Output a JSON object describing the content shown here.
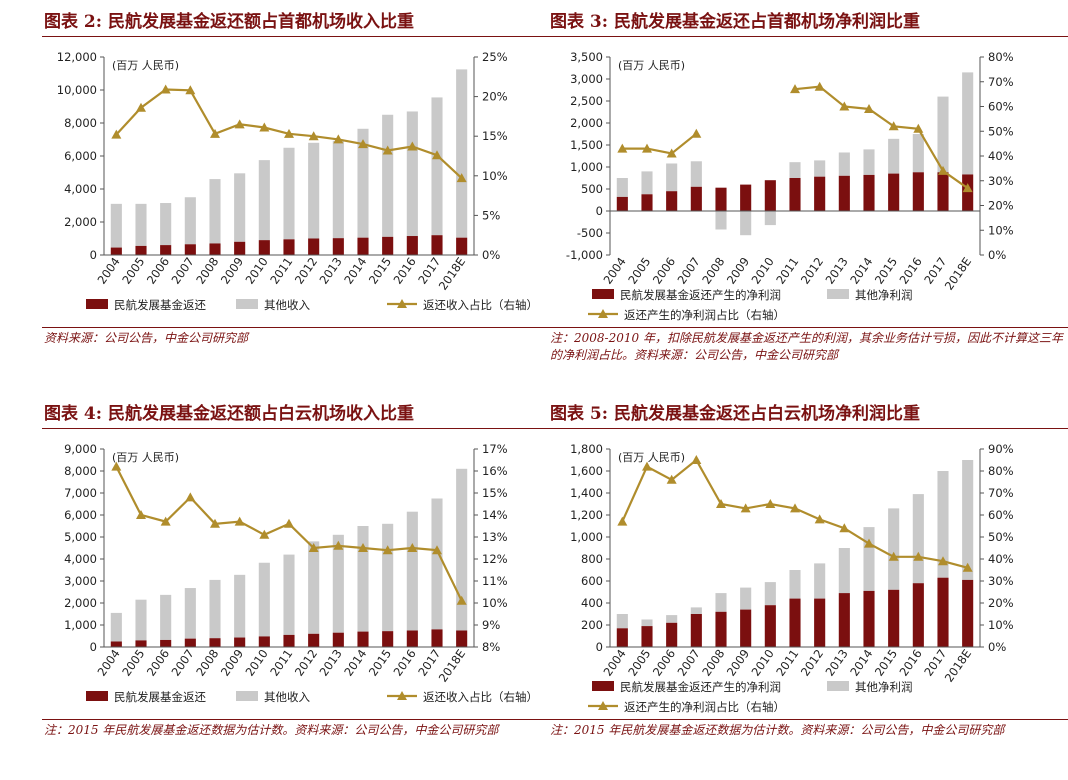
{
  "colors": {
    "bar": "#7b0f0f",
    "other": "#c9c9c9",
    "line": "#b08d2c",
    "accent": "#7a1212"
  },
  "unit_label": "(百万 人民币)",
  "chart_data": [
    {
      "type": "bar",
      "title": "图表 2: 民航发展基金返还额占首都机场收入比重",
      "note": "资料来源：公司公告，中金公司研究部",
      "categories": [
        "2004",
        "2005",
        "2006",
        "2007",
        "2008",
        "2009",
        "2010",
        "2011",
        "2012",
        "2013",
        "2014",
        "2015",
        "2016",
        "2017",
        "2018E"
      ],
      "series": [
        {
          "name": "民航发展基金返还",
          "kind": "bar",
          "values": [
            450,
            550,
            600,
            650,
            700,
            800,
            900,
            950,
            1000,
            1020,
            1050,
            1100,
            1150,
            1200,
            1050
          ]
        },
        {
          "name": "其他收入",
          "kind": "stack",
          "values": [
            2650,
            2550,
            2550,
            2850,
            3900,
            4150,
            4850,
            5550,
            5800,
            5900,
            6600,
            7400,
            7550,
            8350,
            10200
          ]
        },
        {
          "name": "返还收入占比（右轴）",
          "kind": "line",
          "values": [
            15.2,
            18.6,
            20.9,
            20.8,
            15.3,
            16.5,
            16.1,
            15.3,
            15.0,
            14.6,
            14.0,
            13.2,
            13.7,
            12.6,
            9.7
          ]
        }
      ],
      "y_left": {
        "min": 0,
        "max": 12000,
        "ticks": [
          "0",
          "2,000",
          "4,000",
          "6,000",
          "8,000",
          "10,000",
          "12,000"
        ]
      },
      "y_right": {
        "min": 0,
        "max": 25,
        "ticks": [
          "0%",
          "5%",
          "10%",
          "15%",
          "20%",
          "25%"
        ]
      },
      "legend_rows": [
        [
          "民航发展基金返还",
          "其他收入",
          "返还收入占比（右轴）"
        ]
      ],
      "legend_placement": "bottom"
    },
    {
      "type": "bar",
      "title": "图表 3: 民航发展基金返还占首都机场净利润比重",
      "note": "注：2008-2010 年，扣除民航发展基金返还产生的利润，其余业务估计亏损，因此不计算这三年的净利润占比。资料来源：公司公告，中金公司研究部",
      "categories": [
        "2004",
        "2005",
        "2006",
        "2007",
        "2008",
        "2009",
        "2010",
        "2011",
        "2012",
        "2013",
        "2014",
        "2015",
        "2016",
        "2017",
        "2018E"
      ],
      "series": [
        {
          "name": "民航发展基金返还产生的净利润",
          "kind": "bar",
          "values": [
            320,
            380,
            450,
            550,
            530,
            600,
            700,
            750,
            780,
            800,
            820,
            850,
            880,
            880,
            830
          ]
        },
        {
          "name": "其他净利润",
          "kind": "stack",
          "values": [
            430,
            520,
            630,
            580,
            -420,
            -550,
            -320,
            360,
            370,
            530,
            580,
            790,
            870,
            1720,
            2320
          ]
        },
        {
          "name": "返还产生的净利润占比（右轴）",
          "kind": "line",
          "values": [
            43,
            43,
            41,
            49,
            null,
            null,
            null,
            67,
            68,
            60,
            59,
            52,
            51,
            34,
            27
          ]
        }
      ],
      "y_left": {
        "min": -1000,
        "max": 3500,
        "ticks": [
          "-1,000",
          "-500",
          "0",
          "500",
          "1,000",
          "1,500",
          "2,000",
          "2,500",
          "3,000",
          "3,500"
        ]
      },
      "y_right": {
        "min": 0,
        "max": 80,
        "ticks": [
          "0%",
          "10%",
          "20%",
          "30%",
          "40%",
          "50%",
          "60%",
          "70%",
          "80%"
        ]
      },
      "legend_rows": [
        [
          "民航发展基金返还产生的净利润",
          "其他净利润"
        ],
        [
          "返还产生的净利润占比（右轴）"
        ]
      ],
      "legend_placement": "bottom"
    },
    {
      "type": "bar",
      "title": "图表 4: 民航发展基金返还额占白云机场收入比重",
      "note": "注：2015 年民航发展基金返还数据为估计数。资料来源：公司公告，中金公司研究部",
      "categories": [
        "2004",
        "2005",
        "2006",
        "2007",
        "2008",
        "2009",
        "2010",
        "2011",
        "2012",
        "2013",
        "2014",
        "2015",
        "2016",
        "2017",
        "2018E"
      ],
      "series": [
        {
          "name": "民航发展基金返还",
          "kind": "bar",
          "values": [
            250,
            300,
            320,
            380,
            400,
            430,
            480,
            550,
            600,
            650,
            700,
            720,
            750,
            800,
            750
          ]
        },
        {
          "name": "其他收入",
          "kind": "stack",
          "values": [
            1300,
            1850,
            2050,
            2300,
            2650,
            2850,
            3350,
            3650,
            4200,
            4450,
            4800,
            4880,
            5400,
            5950,
            7350
          ]
        },
        {
          "name": "返还收入占比（右轴）",
          "kind": "line",
          "values": [
            16.2,
            14.0,
            13.7,
            14.8,
            13.6,
            13.7,
            13.1,
            13.6,
            12.5,
            12.6,
            12.5,
            12.4,
            12.5,
            12.4,
            10.1
          ]
        }
      ],
      "y_left": {
        "min": 0,
        "max": 9000,
        "ticks": [
          "0",
          "1,000",
          "2,000",
          "3,000",
          "4,000",
          "5,000",
          "6,000",
          "7,000",
          "8,000",
          "9,000"
        ]
      },
      "y_right": {
        "min": 8,
        "max": 17,
        "ticks": [
          "8%",
          "9%",
          "10%",
          "11%",
          "12%",
          "13%",
          "14%",
          "15%",
          "16%",
          "17%"
        ]
      },
      "legend_rows": [
        [
          "民航发展基金返还",
          "其他收入",
          "返还收入占比（右轴）"
        ]
      ],
      "legend_placement": "bottom"
    },
    {
      "type": "bar",
      "title": "图表 5: 民航发展基金返还占白云机场净利润比重",
      "note": "注：2015 年民航发展基金返还数据为估计数。资料来源：公司公告，中金公司研究部",
      "categories": [
        "2004",
        "2005",
        "2006",
        "2007",
        "2008",
        "2009",
        "2010",
        "2011",
        "2012",
        "2013",
        "2014",
        "2015",
        "2016",
        "2017",
        "2018E"
      ],
      "series": [
        {
          "name": "民航发展基金返还产生的净利润",
          "kind": "bar",
          "values": [
            170,
            190,
            220,
            300,
            320,
            340,
            380,
            440,
            440,
            490,
            510,
            520,
            580,
            630,
            610
          ]
        },
        {
          "name": "其他净利润",
          "kind": "stack",
          "values": [
            130,
            60,
            70,
            60,
            170,
            200,
            210,
            260,
            320,
            410,
            580,
            740,
            810,
            970,
            1090
          ]
        },
        {
          "name": "返还产生的净利润占比（右轴）",
          "kind": "line",
          "values": [
            57,
            82,
            76,
            85,
            65,
            63,
            65,
            63,
            58,
            54,
            47,
            41,
            41,
            39,
            36
          ]
        }
      ],
      "y_left": {
        "min": 0,
        "max": 1800,
        "ticks": [
          "0",
          "200",
          "400",
          "600",
          "800",
          "1,000",
          "1,200",
          "1,400",
          "1,600",
          "1,800"
        ]
      },
      "y_right": {
        "min": 0,
        "max": 90,
        "ticks": [
          "0%",
          "10%",
          "20%",
          "30%",
          "40%",
          "50%",
          "60%",
          "70%",
          "80%",
          "90%"
        ]
      },
      "legend_rows": [
        [
          "民航发展基金返还产生的净利润",
          "其他净利润"
        ],
        [
          "返还产生的净利润占比（右轴）"
        ]
      ],
      "legend_placement": "bottom"
    }
  ]
}
